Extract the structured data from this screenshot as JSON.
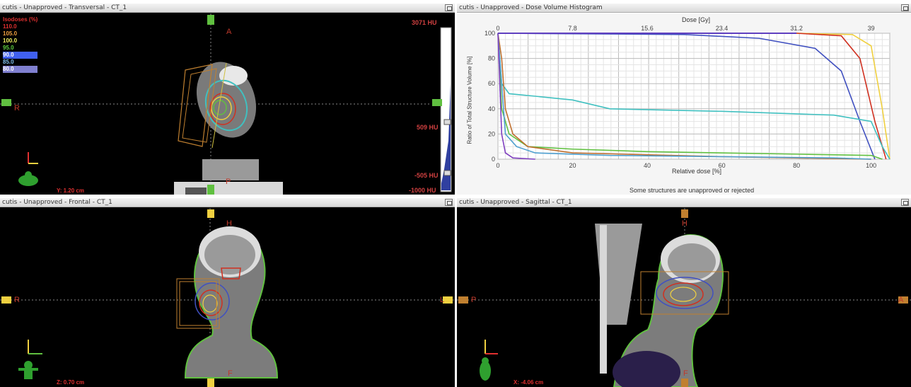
{
  "transversal": {
    "title": "cutis  -  Unapproved - Transversal - CT_1",
    "orient": {
      "top": "A",
      "left": "R",
      "bottom": "P"
    },
    "isodoses": {
      "header": "Isodoses (%)",
      "levels": [
        {
          "value": "110.0",
          "color": "#e03030"
        },
        {
          "value": "105.0",
          "color": "#f0a040"
        },
        {
          "value": "100.0",
          "color": "#f0f060"
        },
        {
          "value": "95.0",
          "color": "#60d040"
        },
        {
          "value": "90.0",
          "color": "#4060f0"
        },
        {
          "value": "85.0",
          "color": "#80c0f0"
        },
        {
          "value": "80.0",
          "color": "#a0a0f0"
        }
      ]
    },
    "hu_top": "3071 HU",
    "hu_509": "509 HU",
    "hu_m505": "-505 HU",
    "hu_m1000": "-1000 HU",
    "coord": "Y: 1.20 cm"
  },
  "dvh": {
    "title": "cutis  -  Unapproved - Dose Volume Histogram",
    "top_axis_title": "Dose [Gy]",
    "top_ticks": [
      "0",
      "7.8",
      "15.6",
      "23.4",
      "31.2",
      "39"
    ],
    "bottom_axis_title": "Relative dose [%]",
    "bottom_ticks": [
      "0",
      "20",
      "40",
      "60",
      "80",
      "100"
    ],
    "y_axis_title": "Ratio of Total Structure Volume [%]",
    "y_ticks": [
      "100",
      "80",
      "60",
      "40",
      "20",
      "0"
    ],
    "footer": "Some structures are unapproved or rejected"
  },
  "frontal": {
    "title": "cutis  -  Unapproved - Frontal - CT_1",
    "orient": {
      "top": "H",
      "left": "R",
      "right": "L",
      "bottom": "F"
    },
    "coord": "Z: 0.70 cm"
  },
  "sagittal": {
    "title": "cutis  -  Unapproved - Sagittal - CT_1",
    "orient": {
      "top": "H",
      "left": "P",
      "right": "A",
      "bottom": "F"
    },
    "coord": "X: -4.06 cm"
  },
  "chart_data": {
    "type": "line",
    "title": "",
    "xlabel": "Relative dose [%]",
    "ylabel": "Ratio of Total Structure Volume [%]",
    "xlim": [
      0,
      105
    ],
    "ylim": [
      0,
      100
    ],
    "series": [
      {
        "color": "#f0d040",
        "x": [
          0,
          80,
          95,
          100,
          103,
          105
        ],
        "y": [
          100,
          100,
          99,
          90,
          40,
          0
        ]
      },
      {
        "color": "#d03020",
        "x": [
          0,
          80,
          92,
          97,
          101,
          104
        ],
        "y": [
          100,
          100,
          98,
          80,
          30,
          0
        ]
      },
      {
        "color": "#4050c0",
        "x": [
          0,
          50,
          70,
          85,
          92,
          97,
          101
        ],
        "y": [
          100,
          99,
          96,
          88,
          70,
          30,
          0
        ]
      },
      {
        "color": "#40c0c0",
        "x": [
          0,
          1,
          3,
          10,
          20,
          30,
          60,
          90,
          100,
          103,
          105
        ],
        "y": [
          100,
          60,
          52,
          50,
          47,
          40,
          38,
          35,
          30,
          10,
          0
        ]
      },
      {
        "color": "#60c040",
        "x": [
          0,
          1,
          3,
          8,
          20,
          40,
          80,
          100,
          103
        ],
        "y": [
          100,
          40,
          20,
          10,
          8,
          6,
          4,
          3,
          0
        ]
      },
      {
        "color": "#c07030",
        "x": [
          0,
          1,
          2,
          4,
          8,
          20,
          60,
          100
        ],
        "y": [
          100,
          80,
          40,
          20,
          10,
          5,
          2,
          0
        ]
      },
      {
        "color": "#50a0d0",
        "x": [
          0,
          2,
          5,
          10,
          30,
          60,
          90,
          100
        ],
        "y": [
          100,
          20,
          10,
          5,
          3,
          2,
          1,
          0
        ]
      },
      {
        "color": "#8040c0",
        "x": [
          0,
          0.5,
          1,
          2,
          4,
          10
        ],
        "y": [
          100,
          60,
          20,
          5,
          1,
          0
        ]
      }
    ]
  }
}
